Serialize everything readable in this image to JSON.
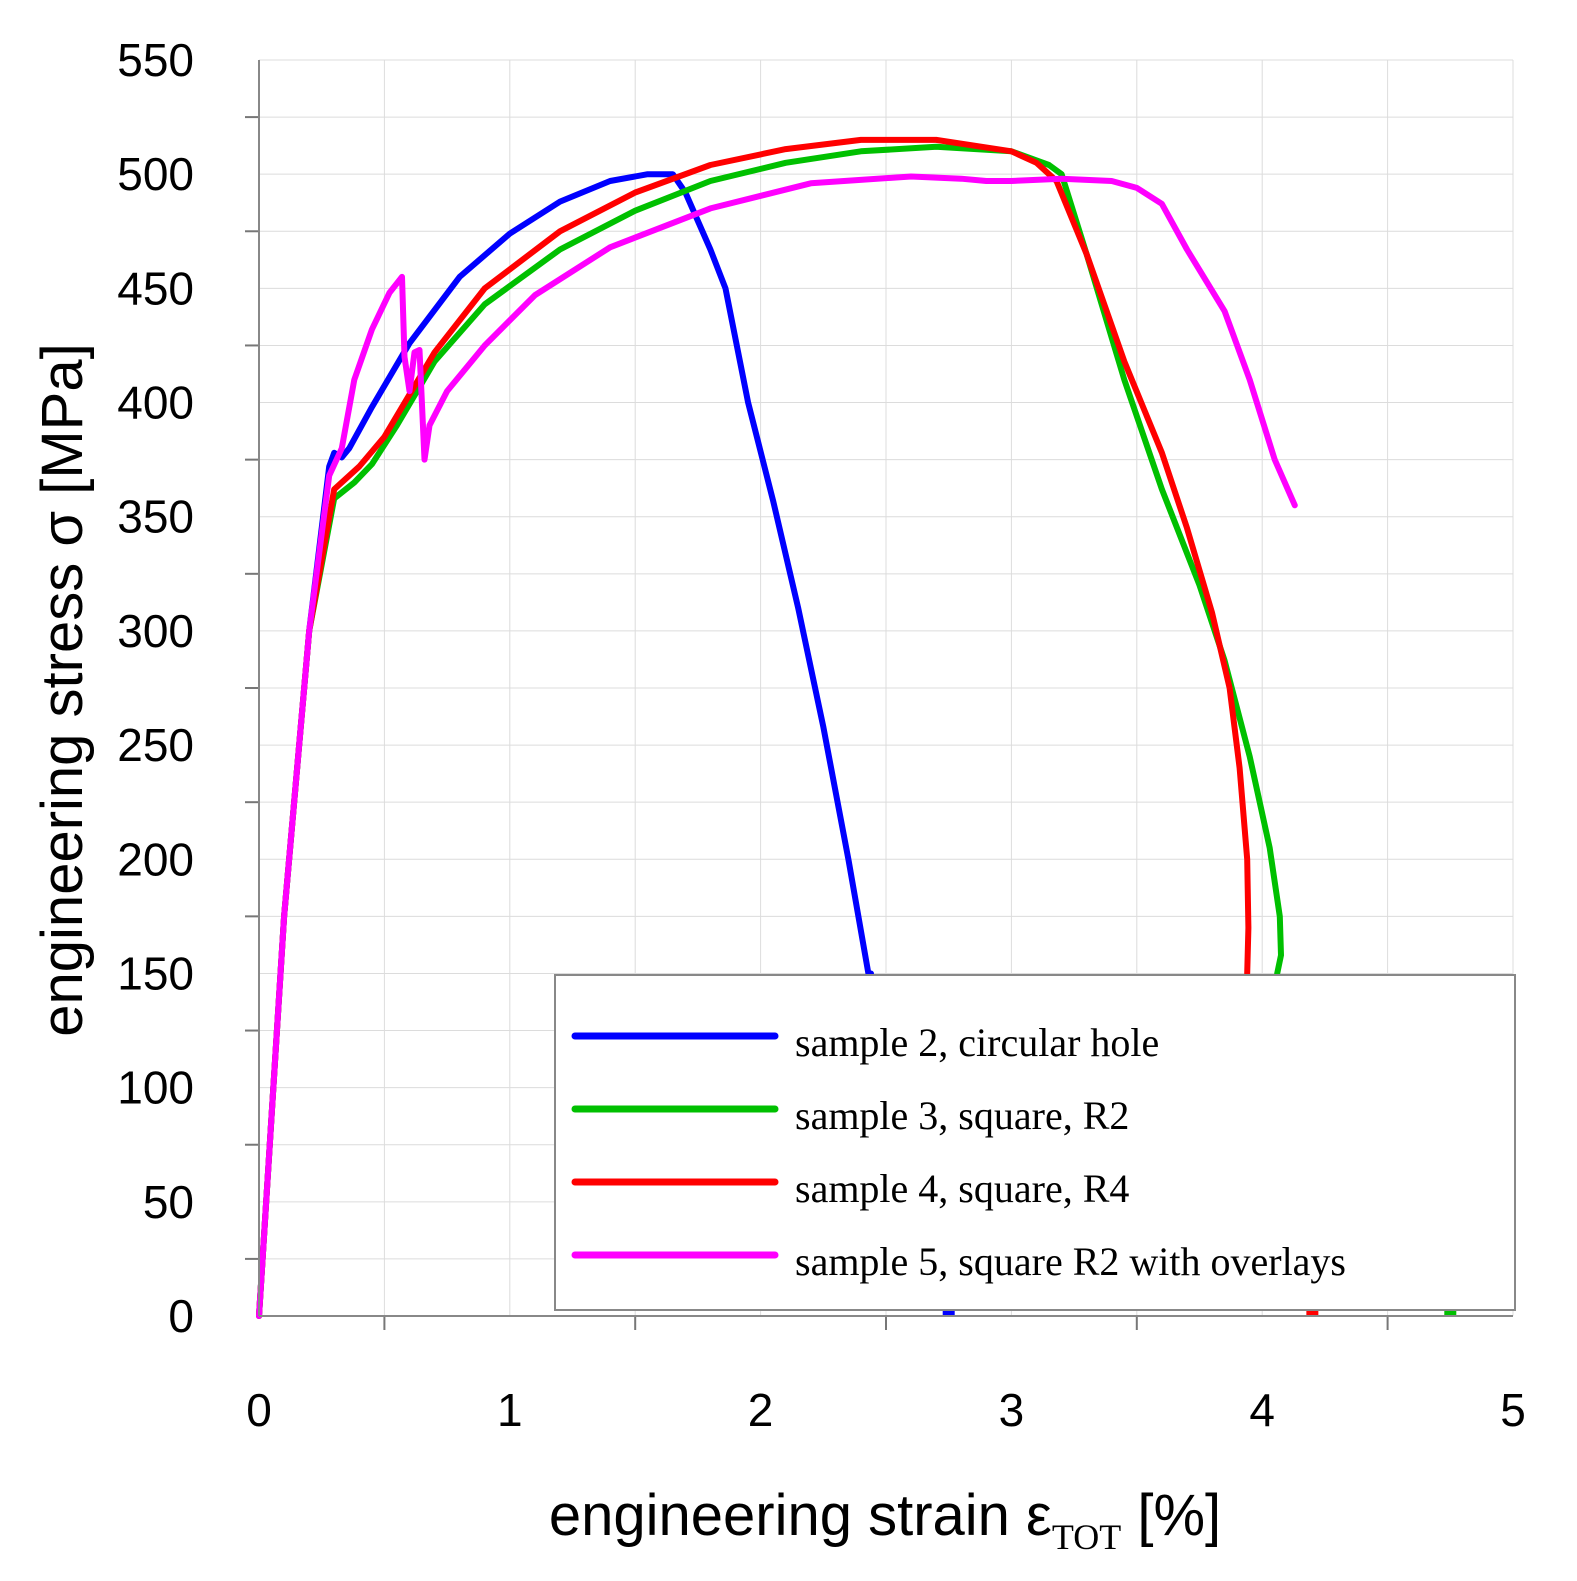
{
  "chart_data": {
    "type": "line",
    "xlabel": "engineering strain ε",
    "xlabel_subscript": "TOT",
    "xlabel_unit": " [%]",
    "ylabel": "engineering stress σ [MPa]",
    "xlim": [
      0,
      5
    ],
    "ylim": [
      0,
      550
    ],
    "x_ticks": [
      "0",
      "1",
      "2",
      "3",
      "4",
      "5"
    ],
    "y_ticks": [
      "0",
      "50",
      "100",
      "150",
      "200",
      "250",
      "300",
      "350",
      "400",
      "450",
      "500",
      "550"
    ],
    "grid": true,
    "legend_position": "bottom-right",
    "series": [
      {
        "name": "sample 2, circular hole",
        "color": "#0000ff",
        "x": [
          0,
          0.1,
          0.2,
          0.28,
          0.3,
          0.33,
          0.36,
          0.45,
          0.6,
          0.8,
          1.0,
          1.2,
          1.4,
          1.55,
          1.65,
          1.7,
          1.8,
          1.86,
          1.95,
          2.05,
          2.15,
          2.25,
          2.35,
          2.43,
          2.44
        ],
        "y": [
          0,
          175,
          300,
          372,
          378,
          376,
          380,
          398,
          426,
          455,
          474,
          488,
          497,
          500,
          500,
          492,
          467,
          450,
          400,
          357,
          310,
          258,
          200,
          150,
          150
        ]
      },
      {
        "name": "sample 3, square, R2",
        "color": "#00c000",
        "x": [
          0,
          0.1,
          0.2,
          0.3,
          0.38,
          0.45,
          0.55,
          0.7,
          0.9,
          1.2,
          1.5,
          1.8,
          2.1,
          2.4,
          2.7,
          3.0,
          3.15,
          3.2,
          3.3,
          3.45,
          3.6,
          3.75,
          3.85,
          3.95,
          4.03,
          4.07,
          4.075,
          4.06
        ],
        "y": [
          0,
          175,
          300,
          358,
          365,
          373,
          390,
          418,
          443,
          467,
          484,
          497,
          505,
          510,
          512,
          510,
          504,
          500,
          465,
          410,
          362,
          320,
          287,
          245,
          205,
          175,
          158,
          150
        ]
      },
      {
        "name": "sample 4, square, R4",
        "color": "#ff0000",
        "x": [
          0,
          0.1,
          0.2,
          0.3,
          0.4,
          0.5,
          0.7,
          0.9,
          1.2,
          1.5,
          1.8,
          2.1,
          2.4,
          2.7,
          3.0,
          3.1,
          3.18,
          3.3,
          3.45,
          3.6,
          3.7,
          3.8,
          3.87,
          3.91,
          3.94,
          3.945,
          3.94
        ],
        "y": [
          0,
          175,
          300,
          362,
          372,
          385,
          422,
          450,
          475,
          492,
          504,
          511,
          515,
          515,
          510,
          505,
          497,
          465,
          418,
          378,
          345,
          308,
          275,
          240,
          200,
          170,
          150
        ]
      },
      {
        "name": "sample 5, square R2 with overlays",
        "color": "#ff00ff",
        "x": [
          0,
          0.1,
          0.2,
          0.28,
          0.33,
          0.38,
          0.45,
          0.52,
          0.57,
          0.58,
          0.6,
          0.62,
          0.64,
          0.66,
          0.68,
          0.75,
          0.9,
          1.1,
          1.4,
          1.8,
          2.2,
          2.6,
          2.8,
          2.9,
          3.0,
          3.2,
          3.4,
          3.5,
          3.6,
          3.7,
          3.85,
          3.95,
          4.05,
          4.13
        ],
        "y": [
          0,
          175,
          300,
          368,
          380,
          410,
          432,
          448,
          455,
          420,
          405,
          422,
          423,
          375,
          390,
          405,
          425,
          447,
          468,
          485,
          496,
          499,
          498,
          497,
          497,
          498,
          497,
          494,
          487,
          467,
          440,
          410,
          375,
          355
        ]
      }
    ],
    "end_markers": [
      {
        "series": 0,
        "x": 2.75,
        "y": 0
      },
      {
        "series": 2,
        "x": 4.2,
        "y": 0
      },
      {
        "series": 1,
        "x": 4.75,
        "y": 0
      }
    ]
  }
}
